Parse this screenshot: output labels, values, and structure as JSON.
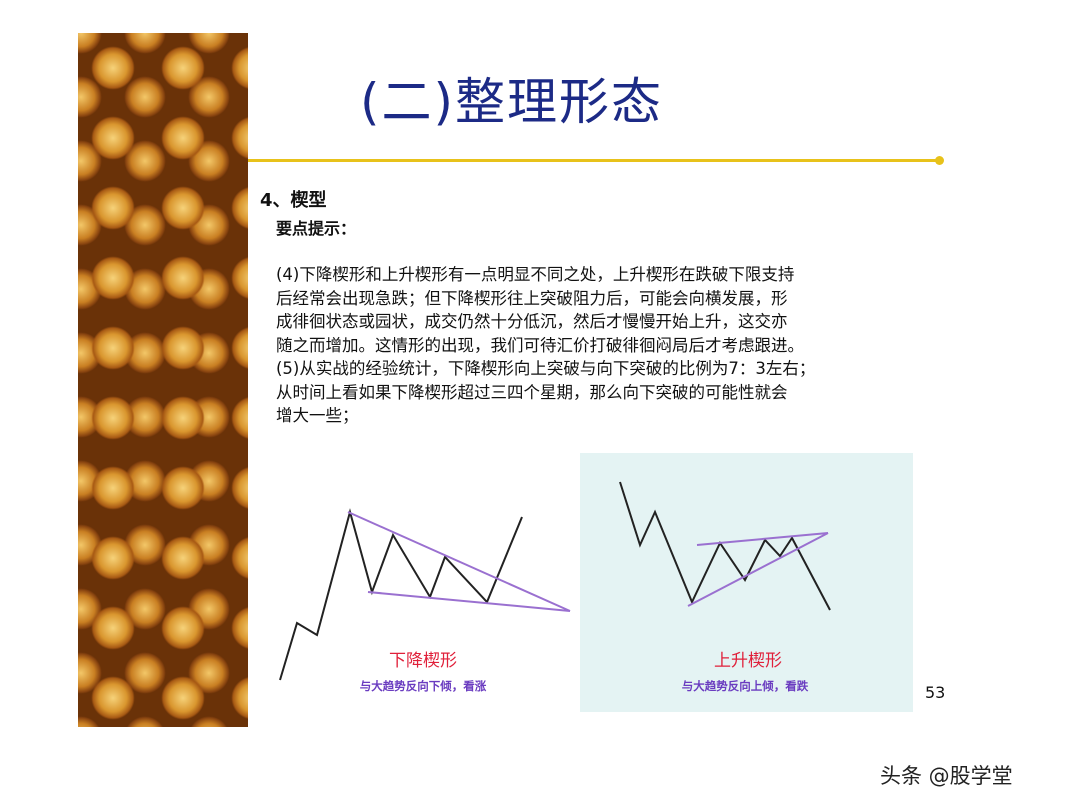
{
  "slide": {
    "title": "(二)整理形态",
    "heading": "4、楔型",
    "tip": "要点提示：",
    "paragraph_lines": [
      "(4)下降楔形和上升楔形有一点明显不同之处，上升楔形在跌破下限支持",
      "后经常会出现急跌；但下降楔形往上突破阻力后，可能会向横发展，形",
      "成徘徊状态或园状，成交仍然十分低沉，然后才慢慢开始上升，这交亦",
      "随之而增加。这情形的出现，我们可待汇价打破徘徊闷局后才考虑跟进。",
      "(5)从实战的经验统计，下降楔形向上突破与向下突破的比例为7：3左右；",
      "从时间上看如果下降楔形超过三四个星期，那么向下突破的可能性就会",
      "增大一些；"
    ],
    "falling_wedge": {
      "label": "下降楔形",
      "caption": "与大趋势反向下倾，看涨"
    },
    "rising_wedge": {
      "label": "上升楔形",
      "caption": "与大趋势反向上倾，看跌"
    },
    "page_number": "53",
    "colors": {
      "title": "#1c2a86",
      "rule": "#e8c21a",
      "label": "#e0203a",
      "caption": "#6a3cc0",
      "trendline": "#9a70d0",
      "panel": "#e4f3f3"
    }
  },
  "watermark": "头条 @股学堂"
}
